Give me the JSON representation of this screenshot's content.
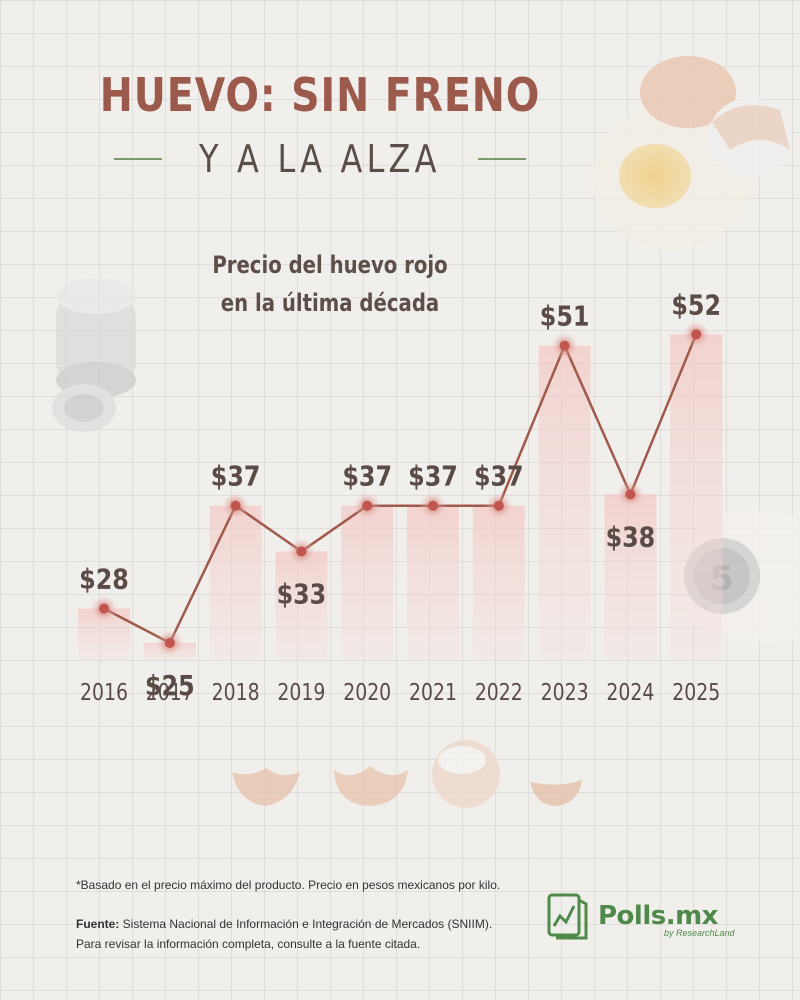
{
  "header": {
    "title": "HUEVO: SIN FRENO",
    "subtitle": "Y A LA ALZA"
  },
  "chart_data": {
    "type": "line",
    "title": "Precio del huevo rojo en la última década",
    "title_lines": [
      "Precio del huevo rojo",
      "en la última década"
    ],
    "x": [
      "2016",
      "2017",
      "2018",
      "2019",
      "2020",
      "2021",
      "2022",
      "2023",
      "2024",
      "2025"
    ],
    "series": [
      {
        "values": [
          28,
          25,
          37,
          33,
          37,
          37,
          37,
          51,
          38,
          52
        ],
        "labels": [
          "$28",
          "$25",
          "$37",
          "$33",
          "$37",
          "$37",
          "$37",
          "$51",
          "$38",
          "$52"
        ]
      }
    ],
    "label_position": [
      "above",
      "below",
      "above",
      "below",
      "above",
      "above",
      "above",
      "above",
      "below",
      "above"
    ],
    "colors": {
      "line": "#a05a4c",
      "label": "#5a4b46",
      "bar": "#f2c9c5",
      "marker": "#c0564d"
    }
  },
  "footer": {
    "footnote": "*Basado en el precio máximo del producto. Precio en pesos mexicanos por kilo.",
    "source_label": "Fuente:",
    "source_text": " Sistema Nacional de Información e Integración de Mercados (SNIIM).",
    "source_note": "Para revisar la información completa, consulte a la fuente citada.",
    "brand": "Polls.mx",
    "brand_sub": "by ResearchLand"
  }
}
